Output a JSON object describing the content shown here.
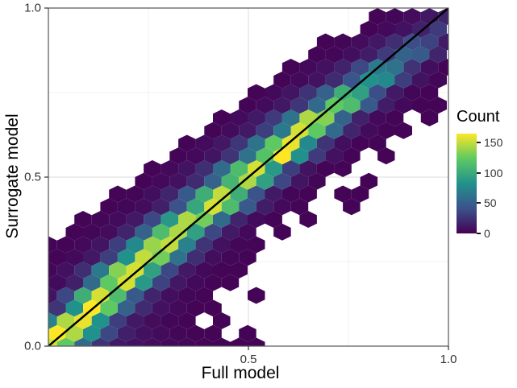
{
  "chart_data": {
    "type": "hexbin",
    "title": "",
    "xlabel": "Full model",
    "ylabel": "Surrogate model",
    "xlim": [
      0,
      1
    ],
    "ylim": [
      0,
      1
    ],
    "grid": true,
    "x_ticks": [
      {
        "v": 0.5,
        "label": "0.5"
      },
      {
        "v": 1.0,
        "label": "1.0"
      }
    ],
    "y_ticks": [
      {
        "v": 0.0,
        "label": "0.0"
      },
      {
        "v": 0.5,
        "label": "0.5"
      },
      {
        "v": 1.0,
        "label": "1.0"
      }
    ],
    "major_gridlines": [
      0,
      0.5,
      1
    ],
    "minor_gridlines": [
      0.25,
      0.75
    ],
    "reference_line": {
      "x1": 0,
      "y1": 0,
      "x2": 1,
      "y2": 1,
      "color": "#000000",
      "width": 2.5
    },
    "legend": {
      "title": "Count",
      "ticks": [
        0,
        50,
        100,
        150
      ],
      "bar_max": 165,
      "position": "right"
    },
    "colormap": {
      "name": "viridis",
      "stops": [
        [
          0,
          "#440154"
        ],
        [
          0.25,
          "#3b528b"
        ],
        [
          0.5,
          "#21918c"
        ],
        [
          0.75,
          "#5ec962"
        ],
        [
          1,
          "#fde725"
        ]
      ]
    },
    "hexbin": {
      "dx": 0.0433,
      "dy": 0.0375,
      "count_max": 160,
      "rows": [
        [
          0,
          0,
          [
            150,
            120,
            55,
            25,
            12,
            8,
            6,
            4,
            3,
            2,
            2,
            2,
            2
          ]
        ],
        [
          1,
          0,
          [
            160,
            140,
            80,
            35,
            15,
            8,
            5,
            3,
            2,
            2,
            0,
            2
          ]
        ],
        [
          2,
          0,
          [
            70,
            140,
            155,
            80,
            30,
            12,
            6,
            3,
            2,
            0,
            2
          ]
        ],
        [
          3,
          0,
          [
            25,
            80,
            160,
            120,
            50,
            20,
            8,
            4,
            2,
            2
          ]
        ],
        [
          4,
          0,
          [
            10,
            35,
            100,
            150,
            110,
            45,
            18,
            7,
            3,
            2,
            0,
            0,
            2
          ]
        ],
        [
          5,
          0,
          [
            5,
            15,
            55,
            120,
            150,
            85,
            32,
            11,
            4,
            2,
            2
          ]
        ],
        [
          6,
          0,
          [
            3,
            8,
            22,
            65,
            130,
            150,
            90,
            35,
            12,
            4,
            2,
            2
          ]
        ],
        [
          7,
          0,
          [
            2,
            4,
            11,
            30,
            80,
            145,
            125,
            60,
            22,
            7,
            3,
            2
          ]
        ],
        [
          8,
          0,
          [
            2,
            2,
            4,
            10,
            30,
            75,
            135,
            145,
            70,
            25,
            8,
            3,
            2
          ]
        ],
        [
          9,
          0,
          [
            0,
            2,
            3,
            6,
            18,
            50,
            110,
            140,
            90,
            35,
            12,
            4,
            0,
            2
          ]
        ],
        [
          10,
          2,
          [
            2,
            3,
            5,
            12,
            35,
            85,
            140,
            125,
            55,
            18,
            5,
            2,
            0,
            2
          ]
        ],
        [
          11,
          3,
          [
            2,
            3,
            6,
            15,
            40,
            95,
            150,
            110,
            45,
            14,
            4,
            2,
            0,
            0,
            2
          ]
        ],
        [
          12,
          4,
          [
            2,
            3,
            7,
            18,
            45,
            100,
            145,
            100,
            40,
            12,
            3,
            2,
            0,
            2,
            2
          ]
        ],
        [
          13,
          5,
          [
            2,
            4,
            8,
            20,
            50,
            105,
            140,
            90,
            35,
            10,
            3,
            0,
            0,
            2
          ]
        ],
        [
          14,
          6,
          [
            2,
            4,
            9,
            22,
            55,
            110,
            150,
            85,
            30,
            9,
            2,
            2
          ]
        ],
        [
          15,
          7,
          [
            2,
            4,
            10,
            25,
            60,
            115,
            160,
            80,
            28,
            8,
            2,
            0,
            2
          ]
        ],
        [
          16,
          8,
          [
            2,
            5,
            11,
            26,
            60,
            120,
            155,
            75,
            25,
            7,
            2,
            2
          ]
        ],
        [
          17,
          9,
          [
            2,
            5,
            12,
            30,
            65,
            150,
            120,
            55,
            18,
            5,
            2,
            2
          ]
        ],
        [
          18,
          10,
          [
            2,
            5,
            12,
            28,
            60,
            140,
            130,
            50,
            16,
            4,
            2,
            0,
            2
          ]
        ],
        [
          19,
          11,
          [
            2,
            5,
            11,
            26,
            55,
            120,
            110,
            45,
            14,
            4,
            2,
            2
          ]
        ],
        [
          20,
          12,
          [
            2,
            4,
            10,
            24,
            50,
            100,
            90,
            38,
            12,
            3,
            2
          ]
        ],
        [
          21,
          13,
          [
            2,
            4,
            9,
            20,
            42,
            80,
            75,
            30,
            9,
            3
          ]
        ],
        [
          22,
          14,
          [
            2,
            4,
            8,
            17,
            35,
            65,
            60,
            24,
            7,
            2
          ]
        ],
        [
          23,
          15,
          [
            2,
            3,
            7,
            14,
            28,
            50,
            45,
            18,
            5
          ]
        ],
        [
          24,
          16,
          [
            2,
            3,
            6,
            11,
            22,
            38,
            32,
            13
          ]
        ],
        [
          25,
          17,
          [
            0,
            2,
            4,
            8,
            16,
            28
          ]
        ],
        [
          26,
          18,
          [
            0,
            2,
            3,
            6,
            11,
            18
          ]
        ]
      ]
    }
  },
  "panel": {
    "background": "#ffffff",
    "border_color": "#595959",
    "grid_major": "#e2e2e2",
    "grid_minor": "#f0f0f0",
    "tick_color": "#333333"
  }
}
